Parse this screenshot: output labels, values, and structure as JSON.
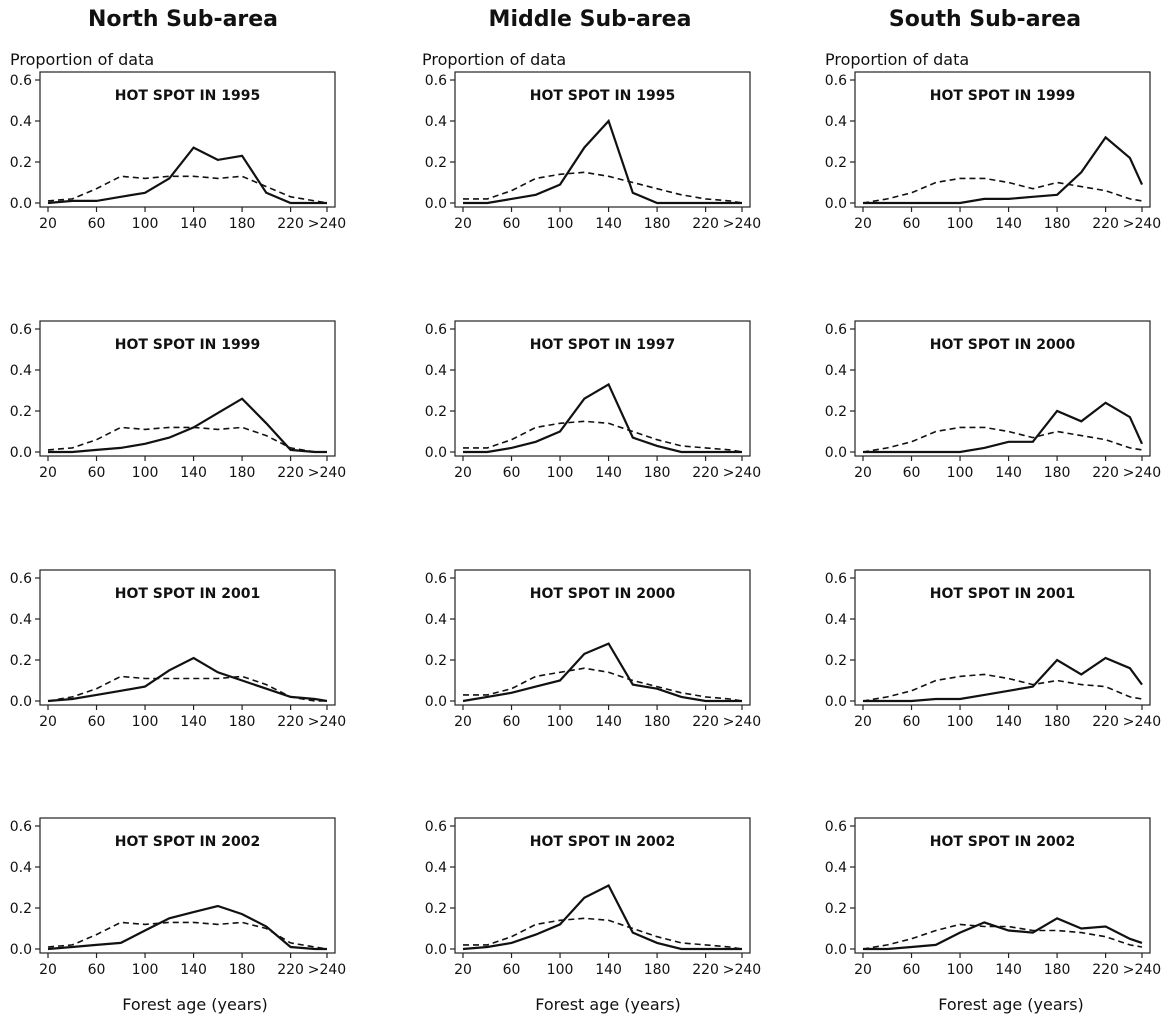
{
  "column_titles": [
    "North Sub-area",
    "Middle Sub-area",
    "South Sub-area"
  ],
  "ylabel": "Proportion of data",
  "xlabel": "Forest age (years)",
  "chart_data": [
    {
      "type": "line",
      "title": "HOT SPOT IN 1995",
      "x": [
        20,
        40,
        60,
        80,
        100,
        120,
        140,
        160,
        180,
        200,
        220,
        240,
        250
      ],
      "ylim": [
        0,
        0.6
      ],
      "series": [
        {
          "style": "solid",
          "values": [
            0.0,
            0.01,
            0.01,
            0.03,
            0.05,
            0.12,
            0.27,
            0.21,
            0.23,
            0.05,
            0.0,
            0.0,
            0.0
          ]
        },
        {
          "style": "dashed",
          "values": [
            0.01,
            0.02,
            0.07,
            0.13,
            0.12,
            0.13,
            0.13,
            0.12,
            0.13,
            0.08,
            0.03,
            0.01,
            0.0
          ]
        }
      ]
    },
    {
      "type": "line",
      "title": "HOT SPOT IN 1995",
      "x": [
        20,
        40,
        60,
        80,
        100,
        120,
        140,
        160,
        180,
        200,
        220,
        240,
        250
      ],
      "ylim": [
        0,
        0.6
      ],
      "series": [
        {
          "style": "solid",
          "values": [
            0.0,
            0.0,
            0.02,
            0.04,
            0.09,
            0.27,
            0.4,
            0.05,
            0.0,
            0.0,
            0.0,
            0.0,
            0.0
          ]
        },
        {
          "style": "dashed",
          "values": [
            0.02,
            0.02,
            0.06,
            0.12,
            0.14,
            0.15,
            0.13,
            0.1,
            0.07,
            0.04,
            0.02,
            0.01,
            0.0
          ]
        }
      ]
    },
    {
      "type": "line",
      "title": "HOT SPOT IN 1999",
      "x": [
        20,
        40,
        60,
        80,
        100,
        120,
        140,
        160,
        180,
        200,
        220,
        240,
        250
      ],
      "ylim": [
        0,
        0.6
      ],
      "series": [
        {
          "style": "solid",
          "values": [
            0.0,
            0.0,
            0.0,
            0.0,
            0.0,
            0.02,
            0.02,
            0.03,
            0.04,
            0.15,
            0.32,
            0.22,
            0.09
          ]
        },
        {
          "style": "dashed",
          "values": [
            0.0,
            0.02,
            0.05,
            0.1,
            0.12,
            0.12,
            0.1,
            0.07,
            0.1,
            0.08,
            0.06,
            0.02,
            0.01
          ]
        }
      ]
    },
    {
      "type": "line",
      "title": "HOT SPOT IN 1999",
      "x": [
        20,
        40,
        60,
        80,
        100,
        120,
        140,
        160,
        180,
        200,
        220,
        240,
        250
      ],
      "ylim": [
        0,
        0.6
      ],
      "series": [
        {
          "style": "solid",
          "values": [
            0.0,
            0.0,
            0.01,
            0.02,
            0.04,
            0.07,
            0.12,
            0.19,
            0.26,
            0.14,
            0.01,
            0.0,
            0.0
          ]
        },
        {
          "style": "dashed",
          "values": [
            0.01,
            0.02,
            0.06,
            0.12,
            0.11,
            0.12,
            0.12,
            0.11,
            0.12,
            0.08,
            0.02,
            0.0,
            0.0
          ]
        }
      ]
    },
    {
      "type": "line",
      "title": "HOT SPOT IN 1997",
      "x": [
        20,
        40,
        60,
        80,
        100,
        120,
        140,
        160,
        180,
        200,
        220,
        240,
        250
      ],
      "ylim": [
        0,
        0.6
      ],
      "series": [
        {
          "style": "solid",
          "values": [
            0.0,
            0.0,
            0.02,
            0.05,
            0.1,
            0.26,
            0.33,
            0.07,
            0.03,
            0.0,
            0.0,
            0.0,
            0.0
          ]
        },
        {
          "style": "dashed",
          "values": [
            0.02,
            0.02,
            0.06,
            0.12,
            0.14,
            0.15,
            0.14,
            0.1,
            0.06,
            0.03,
            0.02,
            0.01,
            0.0
          ]
        }
      ]
    },
    {
      "type": "line",
      "title": "HOT SPOT IN 2000",
      "x": [
        20,
        40,
        60,
        80,
        100,
        120,
        140,
        160,
        180,
        200,
        220,
        240,
        250
      ],
      "ylim": [
        0,
        0.6
      ],
      "series": [
        {
          "style": "solid",
          "values": [
            0.0,
            0.0,
            0.0,
            0.0,
            0.0,
            0.02,
            0.05,
            0.05,
            0.2,
            0.15,
            0.24,
            0.17,
            0.04
          ]
        },
        {
          "style": "dashed",
          "values": [
            0.0,
            0.02,
            0.05,
            0.1,
            0.12,
            0.12,
            0.1,
            0.07,
            0.1,
            0.08,
            0.06,
            0.02,
            0.01
          ]
        }
      ]
    },
    {
      "type": "line",
      "title": "HOT SPOT IN 2001",
      "x": [
        20,
        40,
        60,
        80,
        100,
        120,
        140,
        160,
        180,
        200,
        220,
        240,
        250
      ],
      "ylim": [
        0,
        0.6
      ],
      "series": [
        {
          "style": "solid",
          "values": [
            0.0,
            0.01,
            0.03,
            0.05,
            0.07,
            0.15,
            0.21,
            0.14,
            0.1,
            0.06,
            0.02,
            0.01,
            0.0
          ]
        },
        {
          "style": "dashed",
          "values": [
            0.0,
            0.02,
            0.06,
            0.12,
            0.11,
            0.11,
            0.11,
            0.11,
            0.12,
            0.08,
            0.02,
            0.0,
            0.0
          ]
        }
      ]
    },
    {
      "type": "line",
      "title": "HOT SPOT IN 2000",
      "x": [
        20,
        40,
        60,
        80,
        100,
        120,
        140,
        160,
        180,
        200,
        220,
        240,
        250
      ],
      "ylim": [
        0,
        0.6
      ],
      "series": [
        {
          "style": "solid",
          "values": [
            0.0,
            0.02,
            0.04,
            0.07,
            0.1,
            0.23,
            0.28,
            0.08,
            0.06,
            0.02,
            0.0,
            0.0,
            0.0
          ]
        },
        {
          "style": "dashed",
          "values": [
            0.03,
            0.03,
            0.06,
            0.12,
            0.14,
            0.16,
            0.14,
            0.1,
            0.07,
            0.04,
            0.02,
            0.01,
            0.0
          ]
        }
      ]
    },
    {
      "type": "line",
      "title": "HOT SPOT IN 2001",
      "x": [
        20,
        40,
        60,
        80,
        100,
        120,
        140,
        160,
        180,
        200,
        220,
        240,
        250
      ],
      "ylim": [
        0,
        0.6
      ],
      "series": [
        {
          "style": "solid",
          "values": [
            0.0,
            0.0,
            0.0,
            0.01,
            0.01,
            0.03,
            0.05,
            0.07,
            0.2,
            0.13,
            0.21,
            0.16,
            0.08
          ]
        },
        {
          "style": "dashed",
          "values": [
            0.0,
            0.02,
            0.05,
            0.1,
            0.12,
            0.13,
            0.11,
            0.08,
            0.1,
            0.08,
            0.07,
            0.02,
            0.01
          ]
        }
      ]
    },
    {
      "type": "line",
      "title": "HOT SPOT IN 2002",
      "x": [
        20,
        40,
        60,
        80,
        100,
        120,
        140,
        160,
        180,
        200,
        220,
        240,
        250
      ],
      "ylim": [
        0,
        0.6
      ],
      "series": [
        {
          "style": "solid",
          "values": [
            0.0,
            0.01,
            0.02,
            0.03,
            0.09,
            0.15,
            0.18,
            0.21,
            0.17,
            0.11,
            0.01,
            0.0,
            0.0
          ]
        },
        {
          "style": "dashed",
          "values": [
            0.01,
            0.02,
            0.07,
            0.13,
            0.12,
            0.13,
            0.13,
            0.12,
            0.13,
            0.1,
            0.03,
            0.01,
            0.0
          ]
        }
      ]
    },
    {
      "type": "line",
      "title": "HOT SPOT IN 2002",
      "x": [
        20,
        40,
        60,
        80,
        100,
        120,
        140,
        160,
        180,
        200,
        220,
        240,
        250
      ],
      "ylim": [
        0,
        0.6
      ],
      "series": [
        {
          "style": "solid",
          "values": [
            0.0,
            0.01,
            0.03,
            0.07,
            0.12,
            0.25,
            0.31,
            0.08,
            0.03,
            0.0,
            0.0,
            0.0,
            0.0
          ]
        },
        {
          "style": "dashed",
          "values": [
            0.02,
            0.02,
            0.06,
            0.12,
            0.14,
            0.15,
            0.14,
            0.1,
            0.06,
            0.03,
            0.02,
            0.01,
            0.0
          ]
        }
      ]
    },
    {
      "type": "line",
      "title": "HOT SPOT IN 2002",
      "x": [
        20,
        40,
        60,
        80,
        100,
        120,
        140,
        160,
        180,
        200,
        220,
        240,
        250
      ],
      "ylim": [
        0,
        0.6
      ],
      "series": [
        {
          "style": "solid",
          "values": [
            0.0,
            0.0,
            0.01,
            0.02,
            0.08,
            0.13,
            0.09,
            0.08,
            0.15,
            0.1,
            0.11,
            0.05,
            0.03
          ]
        },
        {
          "style": "dashed",
          "values": [
            0.0,
            0.02,
            0.05,
            0.09,
            0.12,
            0.11,
            0.11,
            0.09,
            0.09,
            0.08,
            0.06,
            0.02,
            0.01
          ]
        }
      ]
    }
  ],
  "x_ticks": [
    "20",
    "60",
    "100",
    "140",
    "180",
    "220",
    ">240"
  ],
  "y_ticks": [
    "0.0",
    "0.2",
    "0.4",
    "0.6"
  ]
}
